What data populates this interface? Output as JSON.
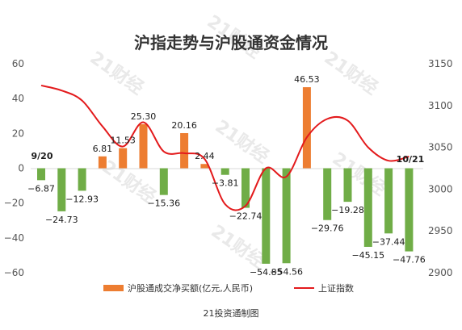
{
  "chart_data": {
    "type": "bar",
    "title": "沪指走势与沪股通资金情况",
    "source": "21投资通制图",
    "watermark": "21财经",
    "left_axis": {
      "min": -60,
      "max": 60,
      "step": 20,
      "ticks": [
        "60",
        "40",
        "20",
        "0",
        "−20",
        "−40",
        "−60"
      ]
    },
    "right_axis": {
      "min": 2900,
      "max": 3150,
      "step": 50,
      "ticks": [
        "3150",
        "3100",
        "3050",
        "3000",
        "2950",
        "2900"
      ]
    },
    "date_labels": {
      "start": "9/20",
      "end": "10/21"
    },
    "series": [
      {
        "name": "沪股通成交净买额(亿元,人民币)",
        "type": "bar",
        "positive_color": "#ed7d31",
        "negative_color": "#70ad47",
        "values": [
          -6.87,
          -24.73,
          -12.93,
          6.81,
          11.53,
          25.3,
          -15.36,
          20.16,
          2.44,
          -3.81,
          -22.74,
          -54.85,
          -54.56,
          46.53,
          -29.76,
          -19.28,
          -45.15,
          -37.44,
          -47.76
        ],
        "labels": [
          "−6.87",
          "−24.73",
          "−12.93",
          "6.81",
          "11.53",
          "25.30",
          "−15.36",
          "20.16",
          "2.44",
          "−3.81",
          "−22.74",
          "−54.85",
          "−54.56",
          "46.53",
          "−29.76",
          "−19.28",
          "−45.15",
          "−37.44",
          "−47.76"
        ]
      },
      {
        "name": "上证指数",
        "type": "line",
        "color": "#e31a1c",
        "values": [
          3124,
          3118,
          3106,
          3075,
          3051,
          3080,
          3045,
          3043,
          3036,
          2982,
          2980,
          3025,
          3015,
          3062,
          3084,
          3082,
          3050,
          3034,
          3039
        ]
      }
    ]
  }
}
